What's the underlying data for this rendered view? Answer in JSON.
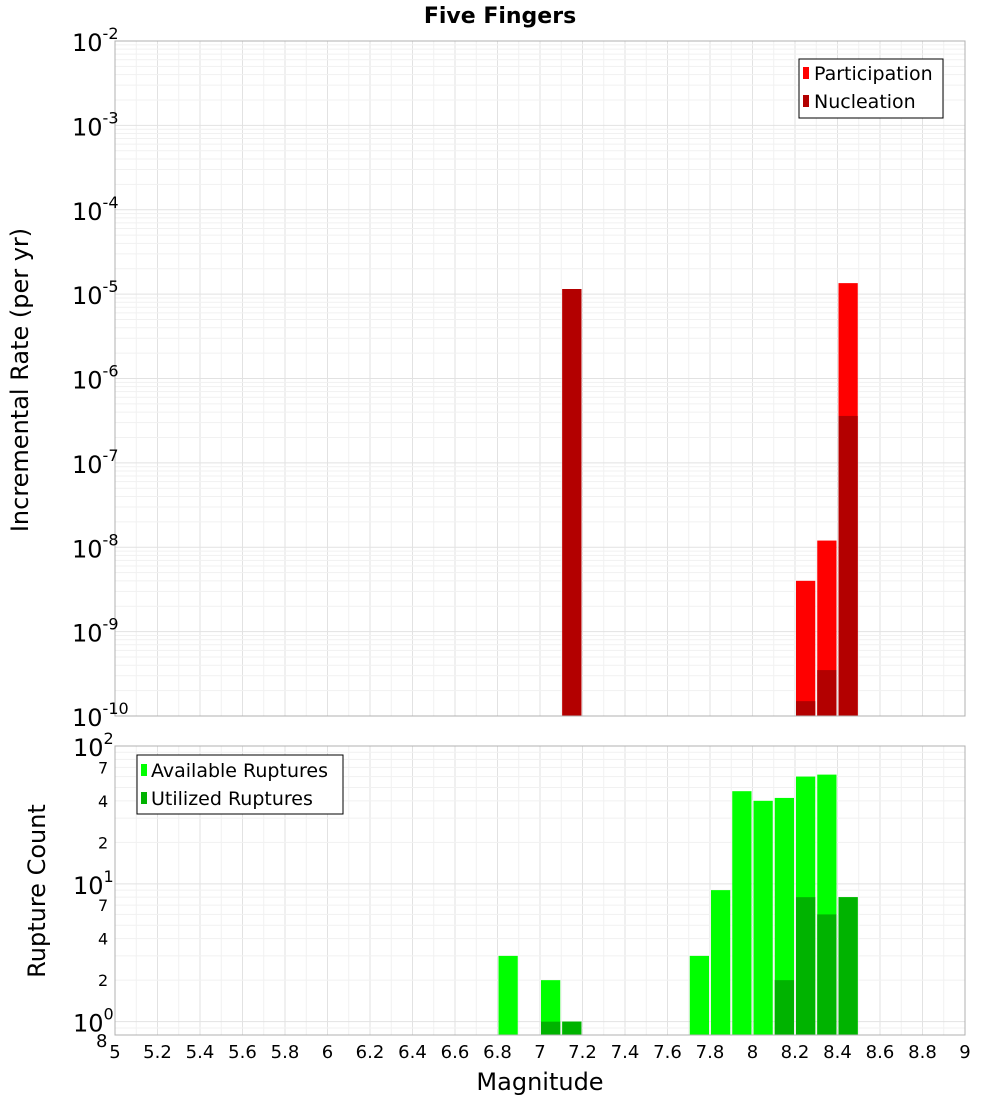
{
  "chart_data": [
    {
      "type": "bar",
      "title": "Five Fingers",
      "xlabel": "Magnitude",
      "ylabel": "Incremental Rate (per yr)",
      "yscale": "log",
      "xlim": [
        5,
        9
      ],
      "ylim": [
        1e-10,
        0.01
      ],
      "y_tick_labels": [
        {
          "base": "10",
          "exp": "-2"
        },
        {
          "base": "10",
          "exp": "-3"
        },
        {
          "base": "10",
          "exp": "-4"
        },
        {
          "base": "10",
          "exp": "-5"
        },
        {
          "base": "10",
          "exp": "-6"
        },
        {
          "base": "10",
          "exp": "-7"
        },
        {
          "base": "10",
          "exp": "-8"
        },
        {
          "base": "10",
          "exp": "-9"
        },
        {
          "base": "10",
          "exp": "-10"
        }
      ],
      "grid": true,
      "legend_position": "top-right",
      "bin_width": 0.1,
      "series": [
        {
          "name": "Participation",
          "color": "#ff0000",
          "x": [
            7.15,
            8.25,
            8.35,
            8.45
          ],
          "values": [
            1.15e-05,
            4e-09,
            1.2e-08,
            1.35e-05
          ]
        },
        {
          "name": "Nucleation",
          "color": "#b30000",
          "x": [
            7.15,
            8.25,
            8.35,
            8.45
          ],
          "values": [
            1.15e-05,
            1.5e-10,
            3.5e-10,
            3.6e-07
          ]
        }
      ]
    },
    {
      "type": "bar",
      "xlabel": "Magnitude",
      "ylabel": "Rupture Count",
      "yscale": "log",
      "xlim": [
        5,
        9
      ],
      "ylim": [
        0.8,
        100
      ],
      "y_tick_labels": [
        {
          "base": "10",
          "exp": "2"
        },
        {
          "base": "7",
          "exp": ""
        },
        {
          "base": "4",
          "exp": ""
        },
        {
          "base": "2",
          "exp": ""
        },
        {
          "base": "10",
          "exp": "1"
        },
        {
          "base": "7",
          "exp": ""
        },
        {
          "base": "4",
          "exp": ""
        },
        {
          "base": "2",
          "exp": ""
        },
        {
          "base": "10",
          "exp": "0"
        },
        {
          "base": "8",
          "exp": ""
        }
      ],
      "x_ticks": [
        "5",
        "5.2",
        "5.4",
        "5.6",
        "5.8",
        "6",
        "6.2",
        "6.4",
        "6.6",
        "6.8",
        "7",
        "7.2",
        "7.4",
        "7.6",
        "7.8",
        "8",
        "8.2",
        "8.4",
        "8.6",
        "8.8",
        "9"
      ],
      "grid": true,
      "legend_position": "top-left",
      "bin_width": 0.1,
      "series": [
        {
          "name": "Available Ruptures",
          "color": "#00ff00",
          "x": [
            6.85,
            7.05,
            7.15,
            7.75,
            7.85,
            7.95,
            8.05,
            8.15,
            8.25,
            8.35,
            8.45
          ],
          "values": [
            3,
            2,
            1,
            3,
            9,
            47,
            40,
            42,
            60,
            62,
            8
          ]
        },
        {
          "name": "Utilized Ruptures",
          "color": "#00b300",
          "x": [
            7.05,
            7.15,
            8.15,
            8.25,
            8.35,
            8.45
          ],
          "values": [
            1,
            1,
            2,
            8,
            6,
            8
          ]
        }
      ]
    }
  ]
}
